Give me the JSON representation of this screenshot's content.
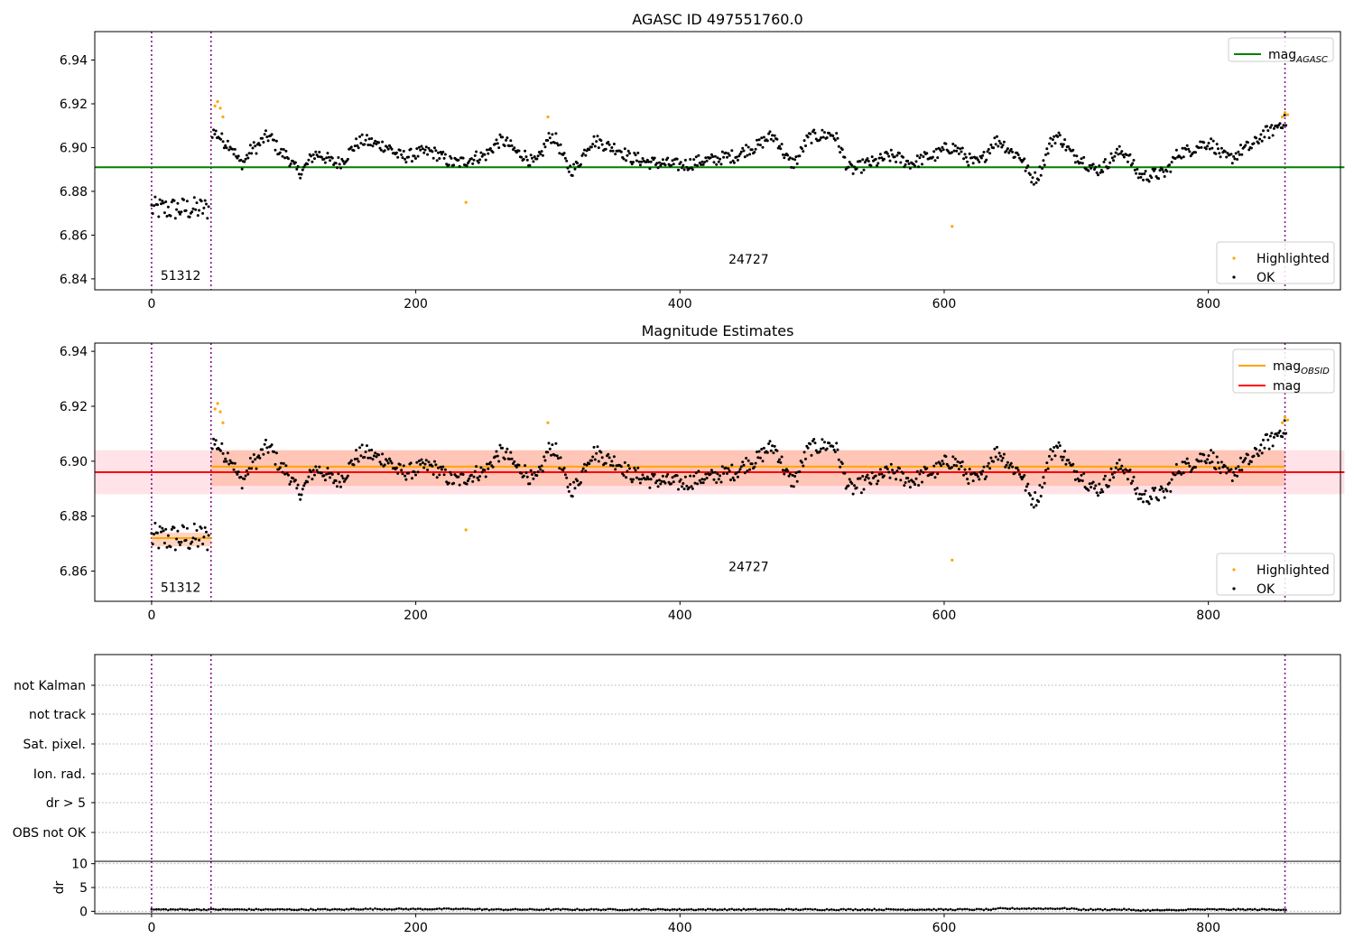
{
  "colors": {
    "ok": "#000000",
    "highlighted": "#FFA500",
    "mag_agasc": "#008000",
    "mag_obsid": "#FFA500",
    "mag": "#FF0000",
    "obsid_boundary": "#800080",
    "band_mag": "#FFC0CB",
    "band_obsid": "#FFA07A",
    "grid": "#b0b0b0"
  },
  "chart_data": [
    {
      "type": "scatter",
      "title": "AGASC ID 497551760.0",
      "xlim": [
        -43,
        900
      ],
      "ylim": [
        6.835,
        6.953
      ],
      "x_ticks": [
        "0",
        "200",
        "400",
        "600",
        "800"
      ],
      "y_ticks": [
        "6.84",
        "6.86",
        "6.88",
        "6.90",
        "6.92",
        "6.94"
      ],
      "grid": false,
      "lines": [
        {
          "name": "mag_AGASC",
          "label_main": "mag",
          "label_sub": "AGASC",
          "y": 6.891,
          "x_range": [
            -43,
            903
          ],
          "color": "#008000"
        }
      ],
      "vlines": [
        0,
        45,
        858
      ],
      "obsid_annotations": [
        {
          "text": "51312",
          "x": 22,
          "y": 6.8395
        },
        {
          "text": "24727",
          "x": 452,
          "y": 6.847
        }
      ],
      "highlighted_points": [
        [
          48,
          6.919
        ],
        [
          50,
          6.921
        ],
        [
          52,
          6.918
        ],
        [
          54,
          6.914
        ],
        [
          238,
          6.875
        ],
        [
          300,
          6.914
        ],
        [
          606,
          6.864
        ],
        [
          856,
          6.914
        ],
        [
          858,
          6.916
        ],
        [
          860,
          6.915
        ]
      ],
      "legends": [
        {
          "placement": "upper right",
          "entries": [
            {
              "main": "mag",
              "sub": "AGASC"
            }
          ]
        },
        {
          "placement": "lower right",
          "entries": [
            {
              "main": "Highlighted"
            },
            {
              "main": "OK"
            }
          ]
        }
      ]
    },
    {
      "type": "scatter",
      "title": "Magnitude Estimates",
      "xlim": [
        -43,
        900
      ],
      "ylim": [
        6.849,
        6.943
      ],
      "x_ticks": [
        "0",
        "200",
        "400",
        "600",
        "800"
      ],
      "y_ticks": [
        "6.86",
        "6.88",
        "6.90",
        "6.92",
        "6.94"
      ],
      "grid": false,
      "lines": [
        {
          "name": "mag_OBSID",
          "label_main": "mag",
          "label_sub": "OBSID",
          "color": "#FFA500",
          "segments": [
            {
              "x": [
                0,
                45
              ],
              "y": 6.872
            },
            {
              "x": [
                45,
                858
              ],
              "y": 6.898
            }
          ]
        },
        {
          "name": "mag",
          "label_main": "mag",
          "y": 6.896,
          "x_range": [
            -43,
            903
          ],
          "color": "#FF0000"
        }
      ],
      "bands": [
        {
          "name": "mag",
          "y": [
            6.888,
            6.904
          ],
          "x_range": [
            -43,
            903
          ],
          "color": "#FFC0CB"
        },
        {
          "name": "mag_OBSID",
          "y": [
            6.891,
            6.904
          ],
          "x_range": [
            45,
            858
          ],
          "color": "#FFA07A"
        },
        {
          "name": "mag_OBSID",
          "y": [
            6.869,
            6.874
          ],
          "x_range": [
            0,
            45
          ],
          "color": "#FFA07A"
        }
      ],
      "vlines": [
        0,
        45,
        858
      ],
      "obsid_annotations": [
        {
          "text": "51312",
          "x": 22,
          "y": 6.8525
        },
        {
          "text": "24727",
          "x": 452,
          "y": 6.86
        }
      ],
      "highlighted_points": [
        [
          48,
          6.919
        ],
        [
          50,
          6.921
        ],
        [
          52,
          6.918
        ],
        [
          54,
          6.914
        ],
        [
          238,
          6.875
        ],
        [
          300,
          6.914
        ],
        [
          606,
          6.864
        ],
        [
          856,
          6.914
        ],
        [
          858,
          6.916
        ],
        [
          860,
          6.915
        ]
      ],
      "legends": [
        {
          "placement": "upper right",
          "entries": [
            {
              "main": "mag",
              "sub": "OBSID"
            },
            {
              "main": "mag"
            }
          ]
        },
        {
          "placement": "lower right",
          "entries": [
            {
              "main": "Highlighted"
            },
            {
              "main": "OK"
            }
          ]
        }
      ]
    },
    {
      "type": "scatter",
      "title": "",
      "xlim": [
        -43,
        900
      ],
      "categories": [
        "not Kalman",
        "not track",
        "Sat. pixel.",
        "Ion. rad.",
        "dr > 5",
        "OBS not OK"
      ],
      "flagged_points": [],
      "grid": true,
      "vlines": [
        0,
        45,
        858
      ]
    },
    {
      "type": "scatter",
      "title": "",
      "ylabel": "dr",
      "xlim": [
        -43,
        900
      ],
      "ylim": [
        -0.5,
        10.5
      ],
      "x_ticks": [
        "0",
        "200",
        "400",
        "600",
        "800"
      ],
      "y_ticks": [
        "0",
        "5",
        "10"
      ],
      "grid": true,
      "dr_approx": "0.1 to 0.6 throughout",
      "vlines": [
        0,
        45,
        858
      ]
    }
  ]
}
